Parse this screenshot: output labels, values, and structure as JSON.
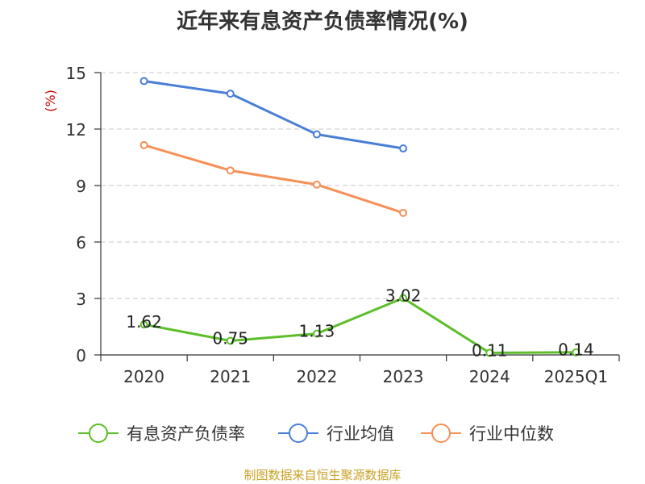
{
  "chart_data": {
    "type": "line",
    "title": "近年来有息资产负债率情况(%)",
    "ylabel": "(%)",
    "categories": [
      "2020",
      "2021",
      "2022",
      "2023",
      "2024",
      "2025Q1"
    ],
    "ylim": [
      0,
      15
    ],
    "yticks": [
      0,
      3,
      6,
      9,
      12,
      15
    ],
    "grid": true,
    "legend_position": "bottom",
    "series": [
      {
        "name": "有息资产负债率",
        "color": "#5cbf2a",
        "values": [
          1.62,
          0.75,
          1.13,
          3.02,
          0.11,
          0.14
        ],
        "show_labels": true
      },
      {
        "name": "行业均值",
        "color": "#4a7fd6",
        "values": [
          14.55,
          13.88,
          11.72,
          10.97,
          null,
          null
        ],
        "show_labels": false
      },
      {
        "name": "行业中位数",
        "color": "#f59057",
        "values": [
          11.15,
          9.8,
          9.05,
          7.55,
          null,
          null
        ],
        "show_labels": false
      }
    ],
    "source": "制图数据来自恒生聚源数据库"
  }
}
